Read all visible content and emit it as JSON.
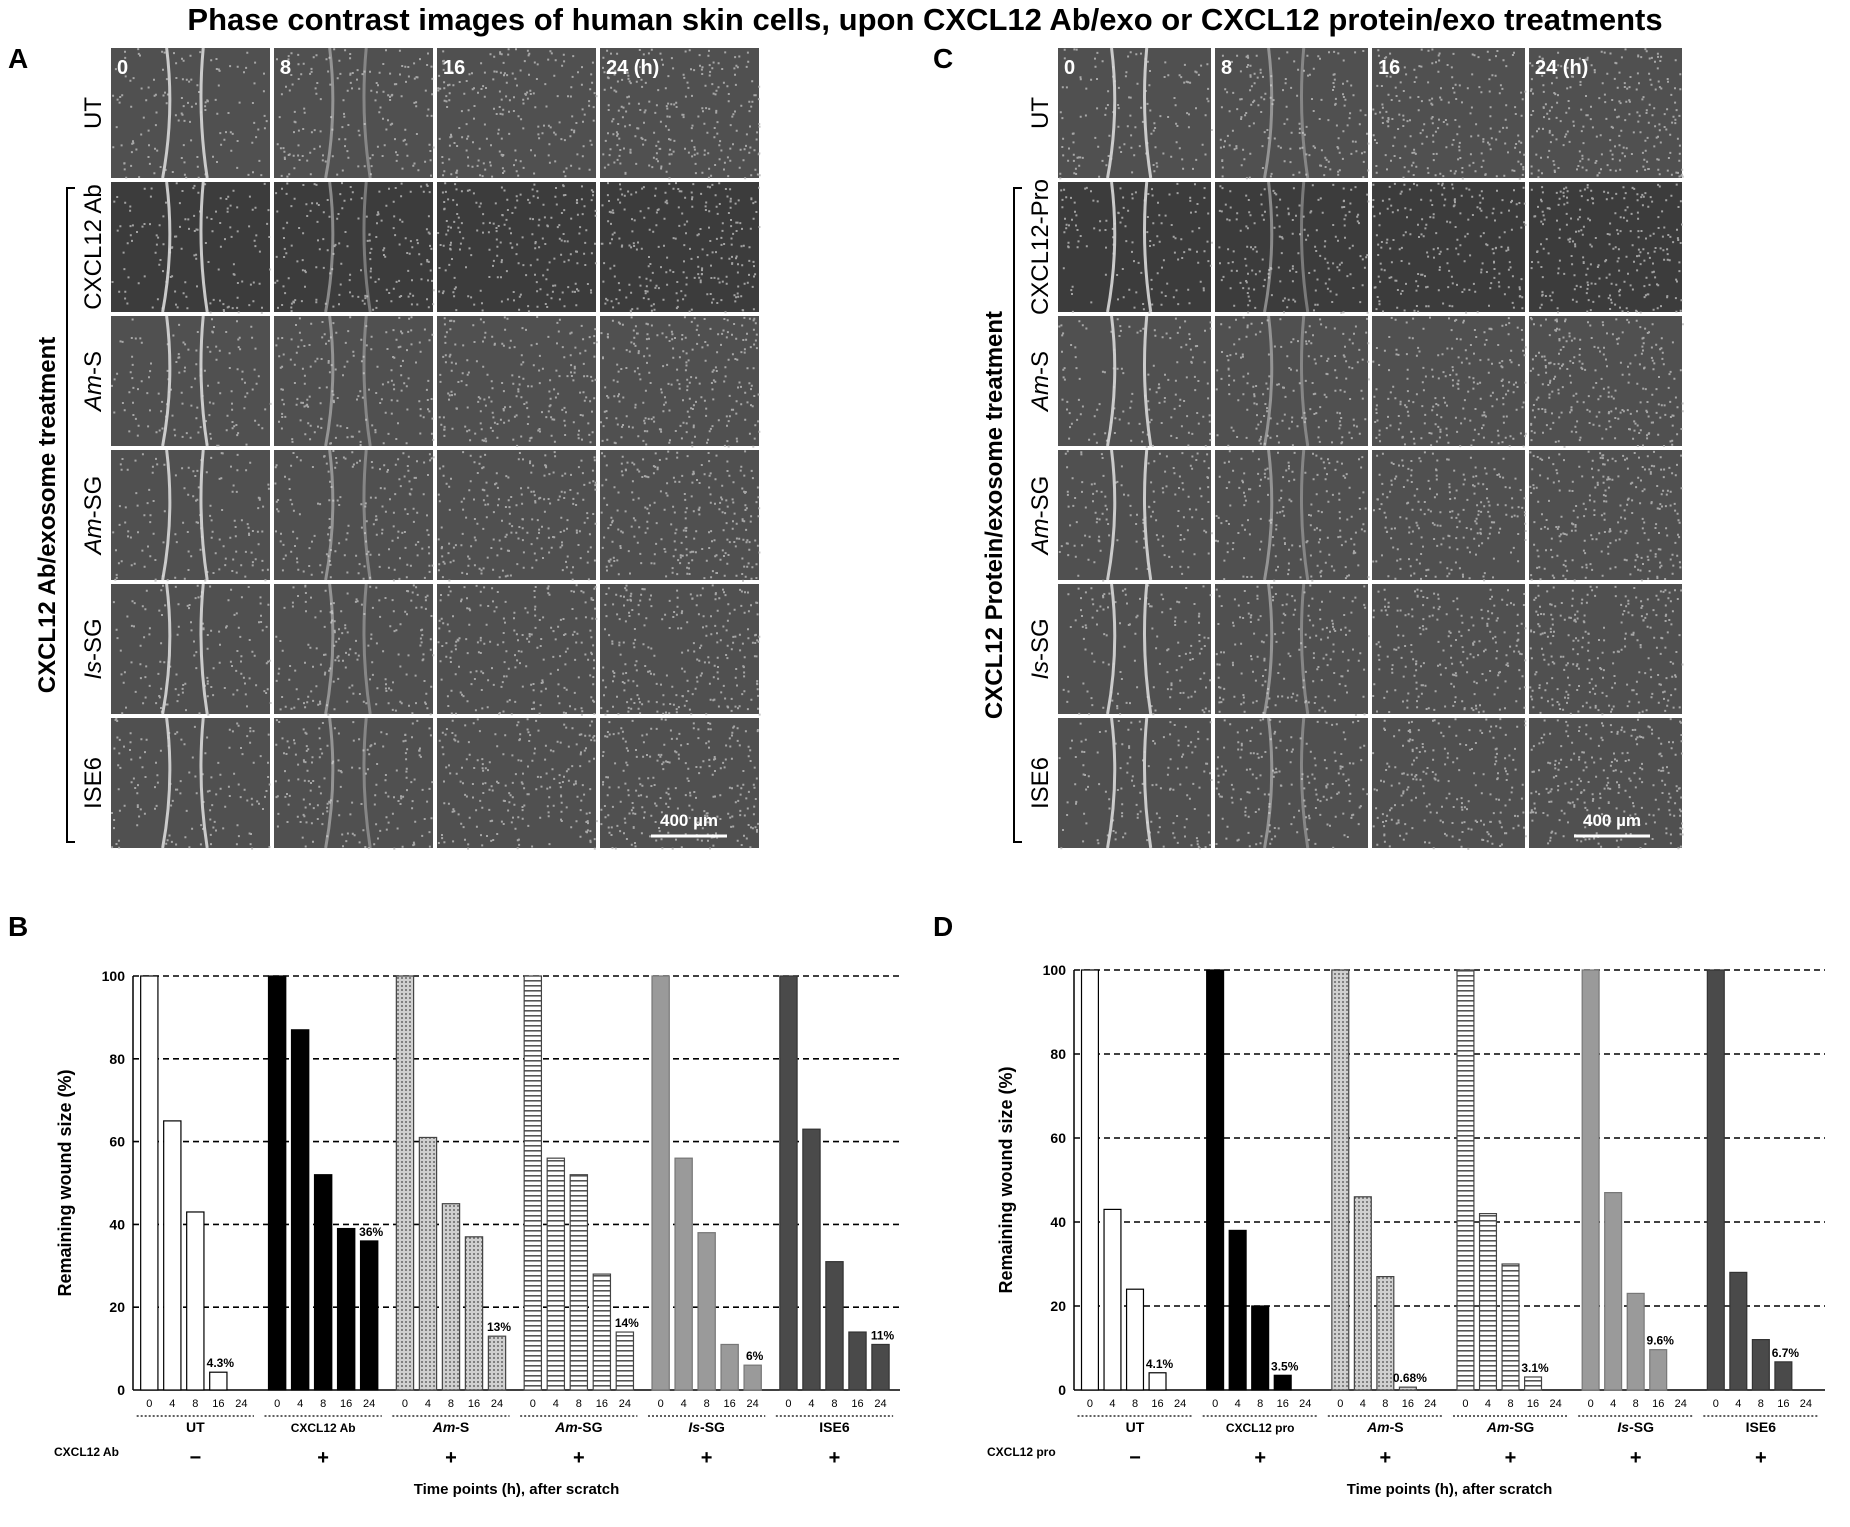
{
  "figure_title": "Phase contrast images of human skin cells, upon CXCL12 Ab/exo or CXCL12 protein/exo treatments",
  "panel_A": {
    "letter": "A",
    "group_label": "CXCL12 Ab/exosome treatment",
    "time_labels": [
      "0",
      "8",
      "16",
      "24 (h)"
    ],
    "rows": [
      {
        "label": "UT",
        "italic_prefix": ""
      },
      {
        "label": "CXCL12 Ab",
        "italic_prefix": ""
      },
      {
        "label": "-S",
        "italic_prefix": "Am"
      },
      {
        "label": "-SG",
        "italic_prefix": "Am"
      },
      {
        "label": "-SG",
        "italic_prefix": "Is"
      },
      {
        "label": "ISE6",
        "italic_prefix": ""
      }
    ],
    "scale_bar": "400 µm"
  },
  "panel_C": {
    "letter": "C",
    "group_label": "CXCL12 Protein/exosome treatment",
    "time_labels": [
      "0",
      "8",
      "16",
      "24 (h)"
    ],
    "rows": [
      {
        "label": "UT",
        "italic_prefix": ""
      },
      {
        "label": "CXCL12-Pro",
        "italic_prefix": ""
      },
      {
        "label": "-S",
        "italic_prefix": "Am"
      },
      {
        "label": "-SG",
        "italic_prefix": "Am"
      },
      {
        "label": "-SG",
        "italic_prefix": "Is"
      },
      {
        "label": "ISE6",
        "italic_prefix": ""
      }
    ],
    "scale_bar": "400 µm"
  },
  "chart_data": [
    {
      "panel": "B",
      "type": "bar",
      "ylabel": "Remaining wound size (%)",
      "xlabel": "Time points (h), after scratch",
      "ylim": [
        0,
        100
      ],
      "yticks": [
        "0",
        "20",
        "40",
        "60",
        "80",
        "100"
      ],
      "grid": "dashed horizontal",
      "time_ticks": [
        "0",
        "4",
        "8",
        "16",
        "24"
      ],
      "treatment_row_label": "CXCL12 Ab",
      "groups": [
        {
          "name": "UT",
          "italic_prefix": "",
          "treatment": "−",
          "values": [
            100,
            65,
            43,
            4.3,
            0
          ],
          "label24": "4.3%",
          "label_index": 3,
          "style": "white"
        },
        {
          "name": "CXCL12 Ab",
          "italic_prefix": "",
          "treatment": "+",
          "values": [
            100,
            87,
            52,
            39,
            36
          ],
          "label24": "36%",
          "label_index": 4,
          "style": "black"
        },
        {
          "name": "-S",
          "italic_prefix": "Am",
          "treatment": "+",
          "values": [
            100,
            61,
            45,
            37,
            13
          ],
          "label24": "13%",
          "label_index": 4,
          "style": "dots"
        },
        {
          "name": "-SG",
          "italic_prefix": "Am",
          "treatment": "+",
          "values": [
            100,
            56,
            52,
            28,
            14
          ],
          "label24": "14%",
          "label_index": 4,
          "style": "hstripes"
        },
        {
          "name": "-SG",
          "italic_prefix": "Is",
          "treatment": "+",
          "values": [
            100,
            56,
            38,
            11,
            6
          ],
          "label24": "6%",
          "label_index": 4,
          "style": "gray"
        },
        {
          "name": "ISE6",
          "italic_prefix": "",
          "treatment": "+",
          "values": [
            100,
            63,
            31,
            14,
            11
          ],
          "label24": "11%",
          "label_index": 4,
          "style": "darkgray"
        }
      ]
    },
    {
      "panel": "D",
      "type": "bar",
      "ylabel": "Remaining wound size (%)",
      "xlabel": "Time points (h), after scratch",
      "ylim": [
        0,
        100
      ],
      "yticks": [
        "0",
        "20",
        "40",
        "60",
        "80",
        "100"
      ],
      "grid": "dashed horizontal",
      "time_ticks": [
        "0",
        "4",
        "8",
        "16",
        "24"
      ],
      "treatment_row_label": "CXCL12 pro",
      "groups": [
        {
          "name": "UT",
          "italic_prefix": "",
          "treatment": "−",
          "values": [
            100,
            43,
            24,
            4.1,
            0
          ],
          "label24": "4.1%",
          "label_index": 3,
          "style": "white"
        },
        {
          "name": "CXCL12 pro",
          "italic_prefix": "",
          "treatment": "+",
          "values": [
            100,
            38,
            20,
            3.5,
            0
          ],
          "label24": "3.5%",
          "label_index": 3,
          "style": "black"
        },
        {
          "name": "-S",
          "italic_prefix": "Am",
          "treatment": "+",
          "values": [
            100,
            46,
            27,
            0.68,
            0
          ],
          "label24": "0.68%",
          "label_index": 3,
          "style": "dots"
        },
        {
          "name": "-SG",
          "italic_prefix": "Am",
          "treatment": "+",
          "values": [
            100,
            42,
            30,
            3.1,
            0
          ],
          "label24": "3.1%",
          "label_index": 3,
          "style": "hstripes"
        },
        {
          "name": "-SG",
          "italic_prefix": "Is",
          "treatment": "+",
          "values": [
            100,
            47,
            23,
            9.6,
            0
          ],
          "label24": "9.6%",
          "label_index": 3,
          "style": "gray"
        },
        {
          "name": "ISE6",
          "italic_prefix": "",
          "treatment": "+",
          "values": [
            100,
            28,
            12,
            6.7,
            0
          ],
          "label24": "6.7%",
          "label_index": 3,
          "style": "darkgray"
        }
      ]
    }
  ],
  "colors": {
    "micrograph_bg": "#505050",
    "micrograph_dark": "#3c3c3c",
    "bar_black": "#000000",
    "bar_gray": "#9a9a9a",
    "bar_darkgray": "#4a4a4a",
    "grid": "#000000"
  }
}
